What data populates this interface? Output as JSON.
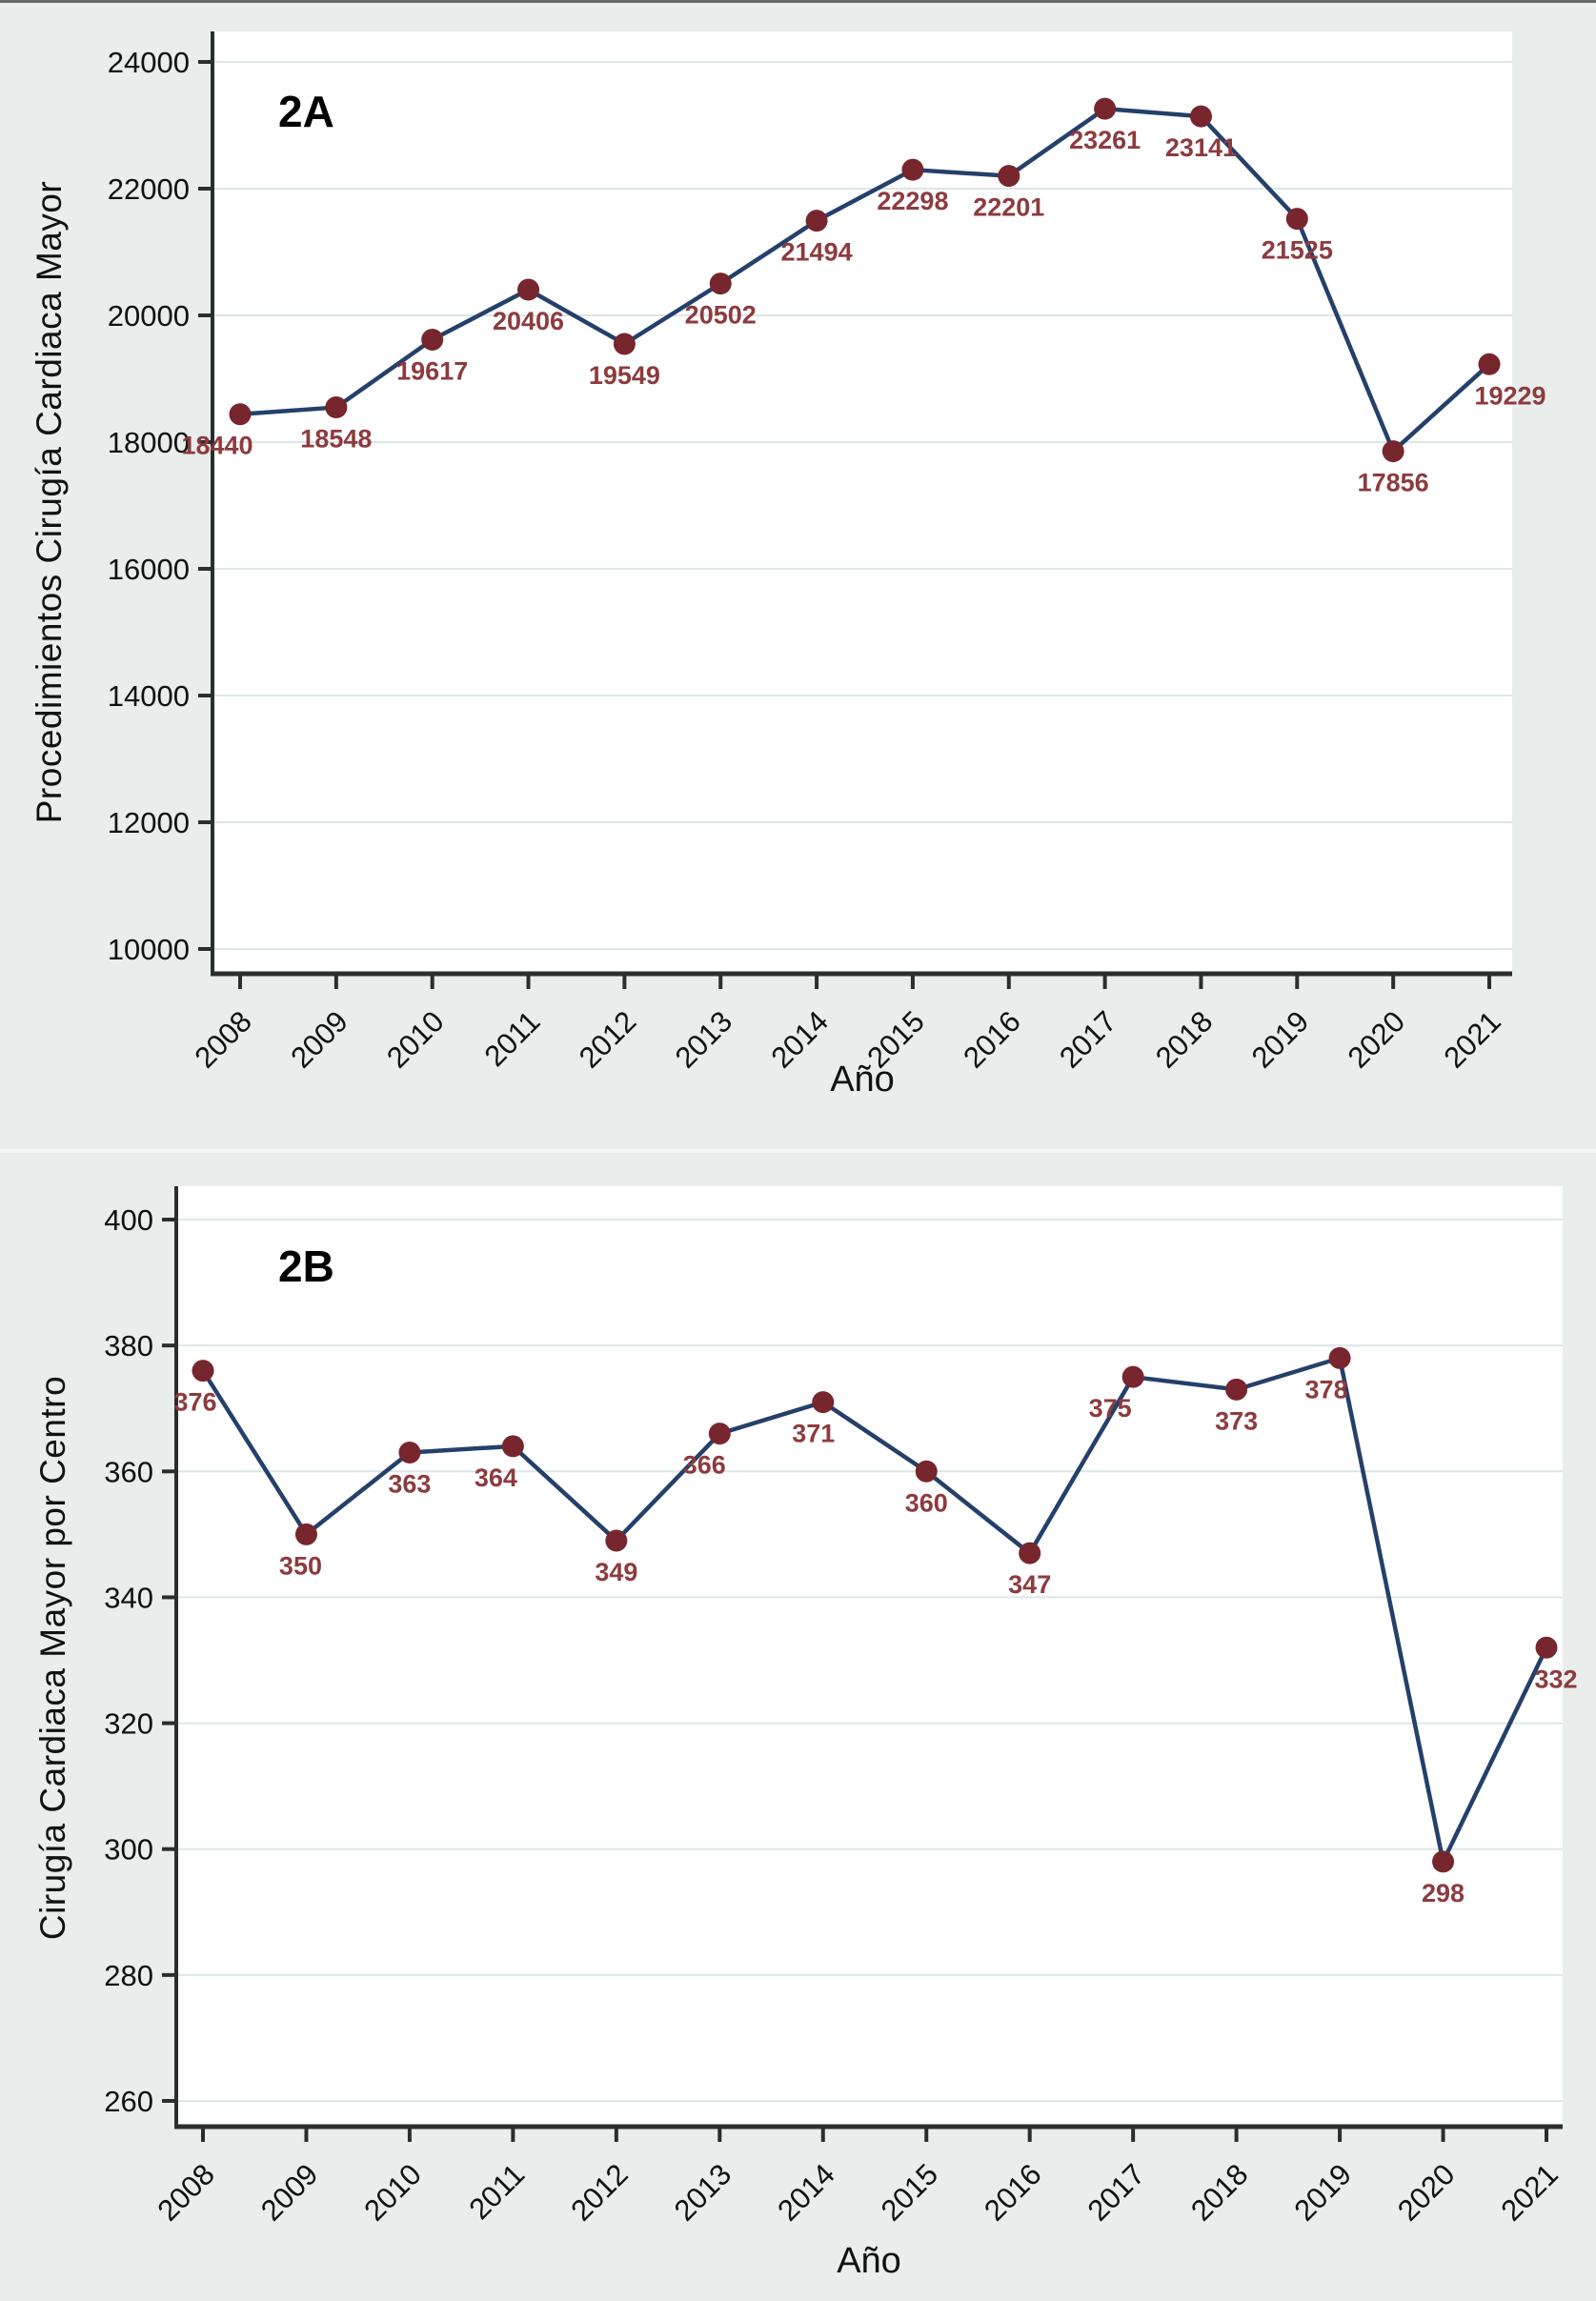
{
  "panel_a_tag": "2A",
  "panel_b_tag": "2B",
  "colors": {
    "background": "#e9edec",
    "plot_background": "#ffffff",
    "gridline": "#dde6e8",
    "axis": "#2b2e2e",
    "tick_text": "#101010",
    "line": "#24406b",
    "marker": "#77262e",
    "data_label": "#8d3b3e"
  },
  "chart_data": [
    {
      "type": "line",
      "title": "2A",
      "xlabel": "Año",
      "ylabel": "Procedimientos Cirugía Cardiaca Mayor",
      "x": [
        2008,
        2009,
        2010,
        2011,
        2012,
        2013,
        2014,
        2015,
        2016,
        2017,
        2018,
        2019,
        2020,
        2021
      ],
      "values": [
        18440,
        18548,
        19617,
        20406,
        19549,
        20502,
        21494,
        22298,
        22201,
        23261,
        23141,
        21525,
        17856,
        19229
      ],
      "yticks": [
        10000,
        12000,
        14000,
        16000,
        18000,
        20000,
        22000,
        24000
      ],
      "ylim": [
        9550,
        24480
      ],
      "grid": true,
      "legend": "none",
      "data_labels": true
    },
    {
      "type": "line",
      "title": "2B",
      "xlabel": "Año",
      "ylabel": "Cirugía Cardiaca Mayor por Centro",
      "x": [
        2008,
        2009,
        2010,
        2011,
        2012,
        2013,
        2014,
        2015,
        2016,
        2017,
        2018,
        2019,
        2020,
        2021
      ],
      "values": [
        376,
        350,
        363,
        364,
        349,
        366,
        371,
        360,
        347,
        375,
        373,
        378,
        298,
        332
      ],
      "yticks": [
        260,
        280,
        300,
        320,
        340,
        360,
        380,
        400
      ],
      "ylim": [
        255,
        405
      ],
      "grid": true,
      "legend": "none",
      "data_labels": true
    }
  ]
}
